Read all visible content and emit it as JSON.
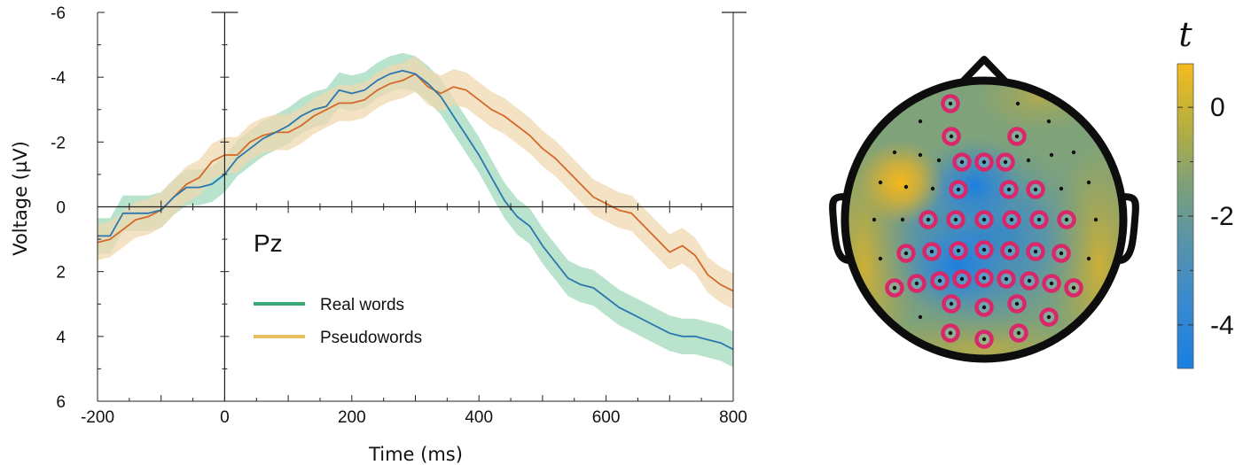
{
  "colors": {
    "real_line": "#2a78ae",
    "real_band": "#a8dcc0",
    "pseudo_line": "#d4692a",
    "pseudo_band": "#f0d8b0",
    "legend_real": "#3aa875",
    "legend_pseudo": "#e8bd5c",
    "sensor_ring": "#d8286a",
    "head_outline": "#0d0d0d"
  },
  "chart_data": [
    {
      "type": "line",
      "xlabel": "Time (ms)",
      "ylabel": "Voltage (µV)",
      "xlim": [
        -200,
        800
      ],
      "ylim": [
        -6,
        6
      ],
      "y_inverted": true,
      "x_ticks": [
        "-200",
        "0",
        "200",
        "400",
        "600",
        "800"
      ],
      "y_ticks": [
        "-6",
        "-4",
        "-2",
        "0",
        "2",
        "4",
        "6"
      ],
      "annotation": "Pz",
      "legend_position": "lower-center",
      "grid": false,
      "x": [
        -200,
        -180,
        -160,
        -140,
        -120,
        -100,
        -80,
        -60,
        -40,
        -20,
        0,
        20,
        40,
        60,
        80,
        100,
        120,
        140,
        160,
        180,
        200,
        220,
        240,
        260,
        280,
        300,
        320,
        340,
        360,
        380,
        400,
        420,
        440,
        460,
        480,
        500,
        520,
        540,
        560,
        580,
        600,
        620,
        640,
        660,
        680,
        700,
        720,
        740,
        760,
        780,
        800
      ],
      "series": [
        {
          "name": "Real words",
          "values": [
            0.9,
            0.9,
            0.2,
            0.2,
            0.2,
            0.1,
            -0.3,
            -0.6,
            -0.6,
            -0.7,
            -1.0,
            -1.5,
            -1.8,
            -2.1,
            -2.3,
            -2.5,
            -2.8,
            -3.0,
            -3.1,
            -3.6,
            -3.5,
            -3.6,
            -3.9,
            -4.1,
            -4.2,
            -4.1,
            -3.8,
            -3.4,
            -2.8,
            -2.2,
            -1.6,
            -0.9,
            -0.2,
            0.3,
            0.6,
            1.2,
            1.7,
            2.2,
            2.4,
            2.5,
            2.8,
            3.1,
            3.3,
            3.5,
            3.7,
            3.9,
            4.0,
            4.0,
            4.1,
            4.2,
            4.4
          ],
          "band": 0.55
        },
        {
          "name": "Pseudowords",
          "values": [
            1.1,
            1.0,
            0.7,
            0.4,
            0.3,
            0.1,
            -0.3,
            -0.7,
            -0.9,
            -1.4,
            -1.6,
            -1.6,
            -2.0,
            -2.2,
            -2.3,
            -2.3,
            -2.5,
            -2.8,
            -3.0,
            -3.2,
            -3.2,
            -3.3,
            -3.6,
            -3.8,
            -3.9,
            -4.1,
            -3.7,
            -3.5,
            -3.7,
            -3.6,
            -3.3,
            -3.0,
            -2.8,
            -2.5,
            -2.2,
            -1.8,
            -1.5,
            -1.1,
            -0.7,
            -0.3,
            -0.1,
            0.1,
            0.2,
            0.6,
            1.0,
            1.4,
            1.2,
            1.5,
            2.1,
            2.4,
            2.6
          ],
          "band": 0.55
        }
      ]
    },
    {
      "type": "heatmap",
      "subtype": "scalp topography",
      "colorbar_title": "t",
      "colorbar_ticks": [
        "0",
        "-2",
        "-4"
      ],
      "clim": [
        -4.8,
        0.8
      ],
      "colormap": [
        "#1a7fe0",
        "#3a8ad0",
        "#5894a8",
        "#7da07a",
        "#a8ad48",
        "#d4b42a",
        "#f5bb1e"
      ]
    }
  ]
}
